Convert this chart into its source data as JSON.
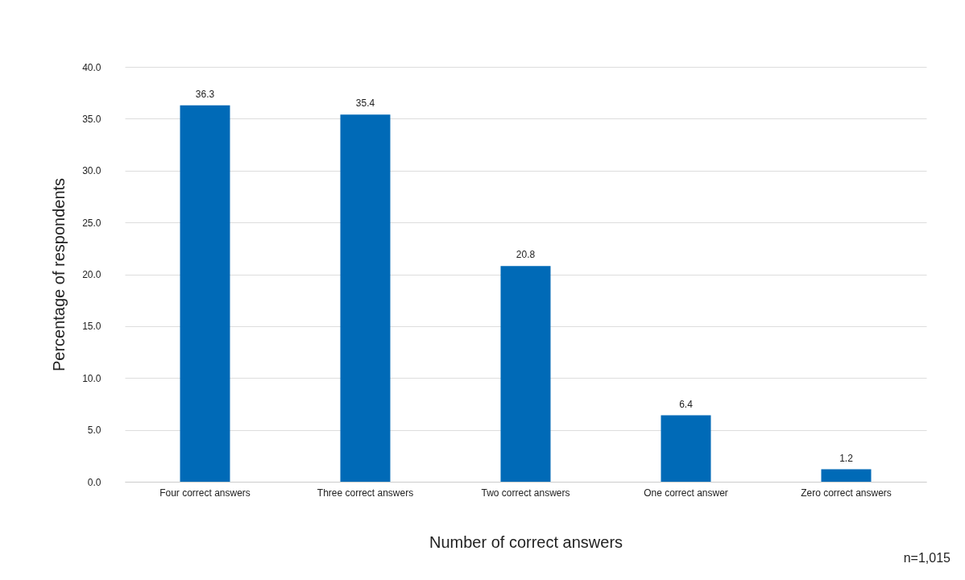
{
  "chart_data": {
    "type": "bar",
    "xlabel": "Number of correct answers",
    "ylabel": "Percentage of respondents",
    "categories": [
      "Four correct answers",
      "Three correct answers",
      "Two correct answers",
      "One correct answer",
      "Zero correct answers"
    ],
    "values": [
      36.3,
      35.4,
      20.8,
      6.4,
      1.2
    ],
    "color": "#006ab7",
    "data_labels": true,
    "ylim": [
      0,
      40
    ],
    "yticks": [
      {
        "value": 0,
        "label": "0.0"
      },
      {
        "value": 5,
        "label": "5.0"
      },
      {
        "value": 10,
        "label": "10.0"
      },
      {
        "value": 15,
        "label": "15.0"
      },
      {
        "value": 20,
        "label": "20.0"
      },
      {
        "value": 25,
        "label": "25.0"
      },
      {
        "value": 30,
        "label": "30.0"
      },
      {
        "value": 35,
        "label": "35.0"
      },
      {
        "value": 40,
        "label": "40.0"
      }
    ],
    "grid": "y",
    "annotations": [
      "n=1,015"
    ]
  }
}
